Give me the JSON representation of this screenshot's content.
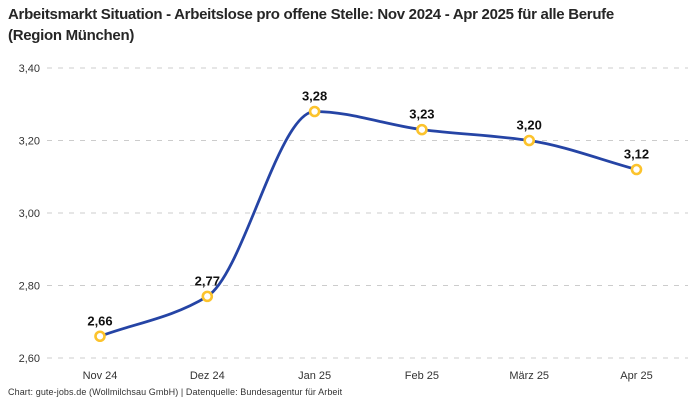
{
  "header": {
    "title": "Arbeitsmarkt Situation - Arbeitslose pro offene Stelle: Nov 2024 - Apr 2025 für alle Berufe (Region München)"
  },
  "footer": {
    "credit": "Chart: gute-jobs.de (Wollmilchsau GmbH) | Datenquelle: Bundesagentur für Arbeit"
  },
  "chart_data": {
    "type": "line",
    "title": "Arbeitsmarkt Situation - Arbeitslose pro offene Stelle: Nov 2024 - Apr 2025 für alle Berufe (Region München)",
    "categories": [
      "Nov 24",
      "Dez 24",
      "Jan 25",
      "Feb 25",
      "März 25",
      "Apr 25"
    ],
    "values": [
      2.66,
      2.77,
      3.28,
      3.23,
      3.2,
      3.12
    ],
    "value_labels": [
      "2,66",
      "2,77",
      "3,28",
      "3,23",
      "3,20",
      "3,12"
    ],
    "xlabel": "",
    "ylabel": "",
    "ylim": [
      2.6,
      3.4
    ],
    "y_tick_values": [
      3.4,
      3.2,
      3.0,
      2.8,
      2.6
    ],
    "y_tick_labels": [
      "3,40",
      "3,20",
      "3,00",
      "2,80",
      "2,60"
    ],
    "grid": "horizontal-dashed",
    "legend_position": "none",
    "curve": "smooth-monotone",
    "colors": {
      "line": "#2544a5",
      "marker_ring": "#fcc32c",
      "marker_fill": "#ffffff",
      "grid": "#cccccc",
      "axis_text": "#333333",
      "data_label_text": "#111111",
      "title_text": "#262626",
      "background": "#ffffff"
    }
  }
}
